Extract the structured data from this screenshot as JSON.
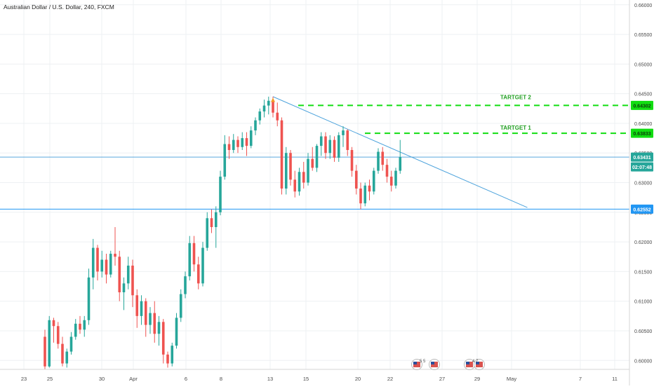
{
  "header": {
    "title": "Australian Dollar / U.S. Dollar, 240, FXCM"
  },
  "colors": {
    "up": "#26a69a",
    "down": "#ef5350",
    "grid": "#eef0f3",
    "axis_text": "#4a4a4a",
    "level_line": "#5aa7dd",
    "trend_line": "#4da3dc",
    "target_line": "#11dd11",
    "target_text": "#22a022",
    "price_tag": "#26a69a",
    "support_tag": "#2196f3"
  },
  "chart_data": {
    "type": "candlestick",
    "title": "Australian Dollar / U.S. Dollar, 240, FXCM",
    "y_ticks": [
      "0.66000",
      "0.65500",
      "0.65000",
      "0.64500",
      "0.64000",
      "0.63500",
      "0.63000",
      "0.62500",
      "0.62000",
      "0.61500",
      "0.61000",
      "0.60500",
      "0.60000"
    ],
    "x_ticks": [
      "23",
      "25",
      "30",
      "Apr",
      "6",
      "8",
      "13",
      "15",
      "20",
      "22",
      "27",
      "29",
      "May",
      "7",
      "11"
    ],
    "ylim": [
      0.5985,
      0.6608
    ],
    "ohlc": [
      [
        0.604,
        0.6052,
        0.5985,
        0.599
      ],
      [
        0.599,
        0.6075,
        0.5988,
        0.6068
      ],
      [
        0.6068,
        0.6072,
        0.603,
        0.6058
      ],
      [
        0.6058,
        0.6065,
        0.602,
        0.6028
      ],
      [
        0.6028,
        0.604,
        0.599,
        0.5995
      ],
      [
        0.5995,
        0.602,
        0.5988,
        0.6015
      ],
      [
        0.6015,
        0.6048,
        0.601,
        0.604
      ],
      [
        0.604,
        0.607,
        0.6035,
        0.6062
      ],
      [
        0.6062,
        0.6075,
        0.6045,
        0.6052
      ],
      [
        0.6052,
        0.6075,
        0.604,
        0.6068
      ],
      [
        0.6068,
        0.6155,
        0.606,
        0.614
      ],
      [
        0.614,
        0.6205,
        0.612,
        0.619
      ],
      [
        0.619,
        0.6195,
        0.6135,
        0.615
      ],
      [
        0.615,
        0.6185,
        0.614,
        0.617
      ],
      [
        0.617,
        0.618,
        0.613,
        0.6145
      ],
      [
        0.6145,
        0.6185,
        0.614,
        0.618
      ],
      [
        0.618,
        0.6225,
        0.616,
        0.6175
      ],
      [
        0.6175,
        0.6185,
        0.61,
        0.6115
      ],
      [
        0.6115,
        0.614,
        0.6085,
        0.613
      ],
      [
        0.613,
        0.6175,
        0.612,
        0.616
      ],
      [
        0.616,
        0.617,
        0.609,
        0.611
      ],
      [
        0.611,
        0.612,
        0.6055,
        0.6075
      ],
      [
        0.6075,
        0.611,
        0.606,
        0.61
      ],
      [
        0.61,
        0.6105,
        0.604,
        0.606
      ],
      [
        0.606,
        0.609,
        0.6045,
        0.608
      ],
      [
        0.608,
        0.61,
        0.603,
        0.6045
      ],
      [
        0.6045,
        0.6075,
        0.6025,
        0.6065
      ],
      [
        0.6065,
        0.607,
        0.5995,
        0.601
      ],
      [
        0.601,
        0.6015,
        0.5988,
        0.5995
      ],
      [
        0.5995,
        0.603,
        0.599,
        0.6025
      ],
      [
        0.6025,
        0.608,
        0.602,
        0.6072
      ],
      [
        0.6072,
        0.612,
        0.6065,
        0.6112
      ],
      [
        0.6112,
        0.615,
        0.6105,
        0.6142
      ],
      [
        0.6142,
        0.621,
        0.6135,
        0.6198
      ],
      [
        0.6198,
        0.621,
        0.615,
        0.6162
      ],
      [
        0.6162,
        0.6175,
        0.612,
        0.613
      ],
      [
        0.613,
        0.62,
        0.6125,
        0.619
      ],
      [
        0.619,
        0.625,
        0.6185,
        0.624
      ],
      [
        0.624,
        0.6255,
        0.6215,
        0.6225
      ],
      [
        0.6225,
        0.626,
        0.619,
        0.625
      ],
      [
        0.625,
        0.632,
        0.6245,
        0.631
      ],
      [
        0.631,
        0.638,
        0.6305,
        0.6365
      ],
      [
        0.6365,
        0.6378,
        0.634,
        0.6355
      ],
      [
        0.6355,
        0.6382,
        0.635,
        0.6372
      ],
      [
        0.6372,
        0.6378,
        0.635,
        0.636
      ],
      [
        0.636,
        0.6385,
        0.6355,
        0.6375
      ],
      [
        0.6375,
        0.6385,
        0.6345,
        0.6362
      ],
      [
        0.6362,
        0.6395,
        0.6358,
        0.6388
      ],
      [
        0.6388,
        0.641,
        0.638,
        0.6405
      ],
      [
        0.6405,
        0.6425,
        0.6398,
        0.642
      ],
      [
        0.642,
        0.644,
        0.641,
        0.643
      ],
      [
        0.643,
        0.6445,
        0.6415,
        0.6438
      ],
      [
        0.6438,
        0.6445,
        0.641,
        0.6418
      ],
      [
        0.6418,
        0.6435,
        0.6395,
        0.6405
      ],
      [
        0.6405,
        0.641,
        0.628,
        0.629
      ],
      [
        0.629,
        0.636,
        0.628,
        0.635
      ],
      [
        0.635,
        0.6355,
        0.6295,
        0.6305
      ],
      [
        0.6305,
        0.632,
        0.6275,
        0.6285
      ],
      [
        0.6285,
        0.6325,
        0.6278,
        0.6318
      ],
      [
        0.6318,
        0.6335,
        0.629,
        0.63
      ],
      [
        0.63,
        0.635,
        0.6295,
        0.634
      ],
      [
        0.634,
        0.636,
        0.632,
        0.6325
      ],
      [
        0.6325,
        0.6365,
        0.6318,
        0.6362
      ],
      [
        0.6362,
        0.6385,
        0.6345,
        0.6378
      ],
      [
        0.6378,
        0.6385,
        0.634,
        0.635
      ],
      [
        0.635,
        0.638,
        0.634,
        0.6372
      ],
      [
        0.6372,
        0.6378,
        0.6335,
        0.6342
      ],
      [
        0.6342,
        0.6385,
        0.6335,
        0.638
      ],
      [
        0.638,
        0.6395,
        0.636,
        0.6388
      ],
      [
        0.6388,
        0.639,
        0.6345,
        0.6355
      ],
      [
        0.6355,
        0.636,
        0.631,
        0.632
      ],
      [
        0.632,
        0.633,
        0.628,
        0.629
      ],
      [
        0.629,
        0.63,
        0.6255,
        0.6265
      ],
      [
        0.6265,
        0.63,
        0.626,
        0.6295
      ],
      [
        0.6295,
        0.6305,
        0.627,
        0.6285
      ],
      [
        0.6285,
        0.6325,
        0.628,
        0.632
      ],
      [
        0.632,
        0.6358,
        0.6315,
        0.6352
      ],
      [
        0.6352,
        0.636,
        0.632,
        0.633
      ],
      [
        0.633,
        0.634,
        0.63,
        0.631
      ],
      [
        0.631,
        0.632,
        0.6285,
        0.6295
      ],
      [
        0.6295,
        0.6325,
        0.629,
        0.632
      ],
      [
        0.632,
        0.6372,
        0.6315,
        0.6343
      ]
    ]
  },
  "levels": {
    "target2": {
      "value": 0.64302,
      "label": "TARTGET 2",
      "tag": "0.64302"
    },
    "target1": {
      "value": 0.63833,
      "label": "TARTGET 1",
      "tag": "0.63833"
    },
    "resistance": {
      "value": 0.63431
    },
    "support": {
      "value": 0.62552,
      "tag": "0.62552"
    }
  },
  "trendline": {
    "start_index": 52,
    "start_price": 0.6445,
    "end_index": 110,
    "end_price": 0.6258
  },
  "current_price": {
    "tag": "0.63431",
    "countdown": "02:07:48"
  },
  "events": [
    {
      "label": "5 5"
    },
    {
      "label": "4 7"
    }
  ]
}
